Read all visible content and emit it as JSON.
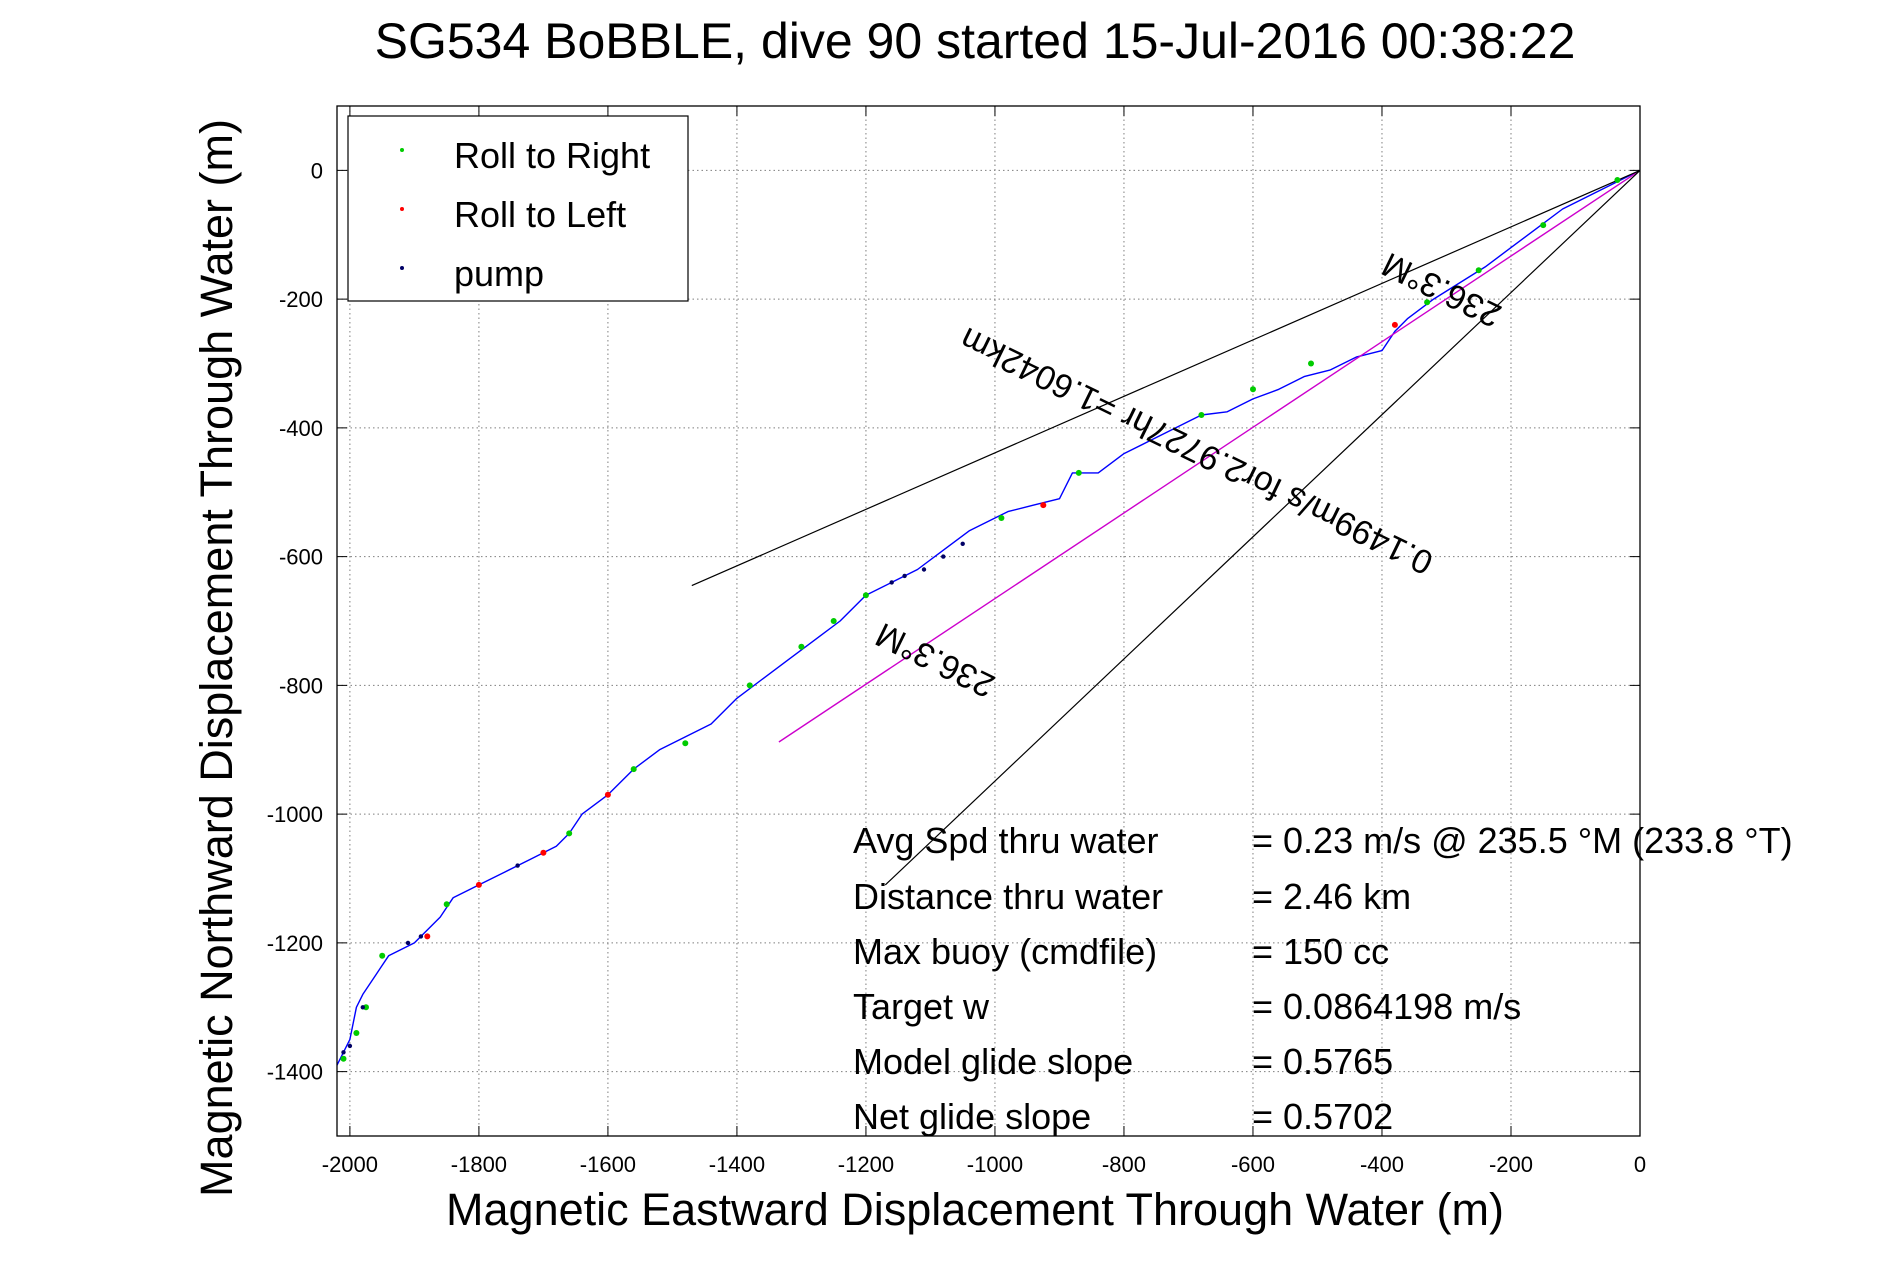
{
  "chart_data": {
    "type": "line",
    "title": "SG534 BoBBLE, dive 90 started 15-Jul-2016 00:38:22",
    "xlabel": "Magnetic Eastward Displacement Through Water (m)",
    "ylabel": "Magnetic Northward Displacement Through Water (m)",
    "xlim": [
      -2020,
      0
    ],
    "ylim": [
      -1500,
      100
    ],
    "xticks": [
      -2000,
      -1800,
      -1600,
      -1400,
      -1200,
      -1000,
      -800,
      -600,
      -400,
      -200,
      0
    ],
    "yticks": [
      0,
      -200,
      -400,
      -600,
      -800,
      -1000,
      -1200,
      -1400
    ],
    "xtick_labels": [
      "-2000",
      "-1800",
      "-1600",
      "-1400",
      "-1200",
      "-1000",
      "-800",
      "-600",
      "-400",
      "-200",
      "0"
    ],
    "ytick_labels": [
      "0",
      "-200",
      "-400",
      "-600",
      "-800",
      "-1000",
      "-1200",
      "-1400"
    ],
    "grid": true,
    "legend_position": "top-left",
    "legend": [
      {
        "label": "Roll to Right",
        "color": "#00cc00"
      },
      {
        "label": "Roll to Left",
        "color": "#ff0000"
      },
      {
        "label": "pump",
        "color": "#000066"
      }
    ],
    "series": [
      {
        "style": "track",
        "color": "#0000ff",
        "x": [
          0,
          -40,
          -80,
          -120,
          -160,
          -200,
          -240,
          -280,
          -320,
          -360,
          -380,
          -400,
          -440,
          -480,
          -520,
          -560,
          -600,
          -640,
          -680,
          -720,
          -760,
          -800,
          -840,
          -880,
          -900,
          -940,
          -980,
          -1000,
          -1040,
          -1080,
          -1120,
          -1160,
          -1200,
          -1240,
          -1280,
          -1320,
          -1360,
          -1400,
          -1440,
          -1480,
          -1520,
          -1560,
          -1600,
          -1640,
          -1660,
          -1680,
          -1720,
          -1760,
          -1800,
          -1840,
          -1860,
          -1900,
          -1940,
          -1960,
          -1980,
          -1990,
          -2000,
          -2020
        ],
        "y": [
          0,
          -20,
          -40,
          -60,
          -90,
          -120,
          -150,
          -175,
          -200,
          -230,
          -250,
          -280,
          -290,
          -310,
          -320,
          -340,
          -355,
          -375,
          -380,
          -400,
          -420,
          -440,
          -470,
          -470,
          -510,
          -520,
          -530,
          -540,
          -560,
          -590,
          -620,
          -640,
          -660,
          -700,
          -730,
          -760,
          -790,
          -820,
          -860,
          -880,
          -900,
          -930,
          -970,
          -1000,
          -1030,
          -1050,
          -1070,
          -1090,
          -1110,
          -1130,
          -1160,
          -1200,
          -1220,
          -1250,
          -1280,
          -1300,
          -1350,
          -1390
        ]
      },
      {
        "style": "roll-right",
        "color": "#00cc00",
        "points": [
          [
            -35,
            -15
          ],
          [
            -150,
            -85
          ],
          [
            -250,
            -155
          ],
          [
            -330,
            -205
          ],
          [
            -510,
            -300
          ],
          [
            -600,
            -340
          ],
          [
            -680,
            -380
          ],
          [
            -870,
            -470
          ],
          [
            -990,
            -540
          ],
          [
            -1200,
            -660
          ],
          [
            -1250,
            -700
          ],
          [
            -1300,
            -740
          ],
          [
            -1380,
            -800
          ],
          [
            -1480,
            -890
          ],
          [
            -1560,
            -930
          ],
          [
            -1660,
            -1030
          ],
          [
            -1850,
            -1140
          ],
          [
            -1950,
            -1220
          ],
          [
            -1975,
            -1300
          ],
          [
            -1990,
            -1340
          ],
          [
            -2010,
            -1380
          ]
        ]
      },
      {
        "style": "roll-left",
        "color": "#ff0000",
        "points": [
          [
            -380,
            -240
          ],
          [
            -925,
            -520
          ],
          [
            -1600,
            -970
          ],
          [
            -1700,
            -1060
          ],
          [
            -1800,
            -1110
          ],
          [
            -1880,
            -1190
          ]
        ]
      },
      {
        "style": "pump",
        "color": "#000066",
        "points": [
          [
            -1050,
            -580
          ],
          [
            -1080,
            -600
          ],
          [
            -1110,
            -620
          ],
          [
            -1140,
            -630
          ],
          [
            -1160,
            -640
          ],
          [
            -1740,
            -1080
          ],
          [
            -1890,
            -1190
          ],
          [
            -1910,
            -1200
          ],
          [
            -1980,
            -1300
          ],
          [
            -2000,
            -1360
          ],
          [
            -2010,
            -1370
          ]
        ]
      },
      {
        "style": "bearing-line",
        "color": "#cc00cc",
        "x": [
          0,
          -1335
        ],
        "y": [
          0,
          -888
        ]
      },
      {
        "style": "envelope",
        "color": "#000000",
        "x": [
          0,
          -1470
        ],
        "y": [
          0,
          -645
        ]
      },
      {
        "style": "envelope",
        "color": "#000000",
        "x": [
          0,
          -1170
        ],
        "y": [
          0,
          -1110
        ]
      }
    ],
    "annotations": [
      {
        "text": "236.3°M",
        "x": -300,
        "y": -170,
        "rotation": 206
      },
      {
        "text": "0.1499m/s for2.9727hr =1.6042km",
        "x": -680,
        "y": -420,
        "rotation": 206
      },
      {
        "text": "236.3°M",
        "x": -1085,
        "y": -745,
        "rotation": 206
      }
    ],
    "stats": [
      {
        "label": "Avg Spd thru water",
        "value": "=  0.23 m/s @ 235.5 °M (233.8 °T)"
      },
      {
        "label": "Distance thru water",
        "value": "=  2.46 km"
      },
      {
        "label": "Max buoy (cmdfile)",
        "value": "= 150 cc"
      },
      {
        "label": "Target w",
        "value": "= 0.0864198 m/s"
      },
      {
        "label": "Model glide slope",
        "value": "= 0.5765"
      },
      {
        "label": "Net glide slope",
        "value": "= 0.5702"
      }
    ]
  }
}
